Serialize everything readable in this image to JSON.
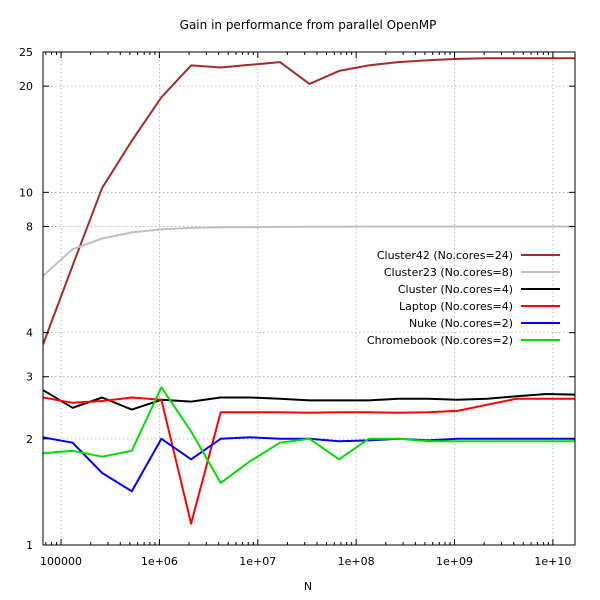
{
  "chart_data": {
    "type": "line",
    "title": "Gain in performance from parallel OpenMP",
    "xlabel": "N",
    "ylabel": "",
    "xscale": "log",
    "yscale": "log",
    "xlim": [
      65536,
      16777216000
    ],
    "ylim": [
      1,
      25
    ],
    "grid": true,
    "legend_position": "right",
    "x_ticks": [
      {
        "value": 100000,
        "label": "100000"
      },
      {
        "value": 1000000,
        "label": "1e+06"
      },
      {
        "value": 10000000,
        "label": "1e+07"
      },
      {
        "value": 100000000,
        "label": "1e+08"
      },
      {
        "value": 1000000000,
        "label": "1e+09"
      },
      {
        "value": 10000000000,
        "label": "1e+10"
      }
    ],
    "y_ticks": [
      {
        "value": 1,
        "label": "1"
      },
      {
        "value": 2,
        "label": "2"
      },
      {
        "value": 3,
        "label": "3"
      },
      {
        "value": 4,
        "label": "4"
      },
      {
        "value": 8,
        "label": "8"
      },
      {
        "value": 10,
        "label": "10"
      },
      {
        "value": 20,
        "label": "20"
      },
      {
        "value": 25,
        "label": "25"
      }
    ],
    "x": [
      65536,
      131072,
      262144,
      524288,
      1048576,
      2097152,
      4194304,
      8388608,
      16777216,
      33554432,
      67108864,
      134217728,
      268435456,
      536870912,
      1073741824,
      2147483648,
      4294967296,
      8589934592,
      17179869184
    ],
    "series": [
      {
        "name": "Cluster42 (No.cores=24)",
        "color": "#a52a2a",
        "values": [
          3.7,
          6.2,
          10.3,
          14.0,
          18.6,
          22.9,
          22.6,
          23.0,
          23.4,
          20.3,
          22.1,
          22.9,
          23.4,
          23.7,
          23.9,
          24.0,
          24.0,
          24.0,
          24.0
        ]
      },
      {
        "name": "Cluster23 (No.cores=8)",
        "color": "#c0c0c0",
        "values": [
          5.8,
          6.9,
          7.4,
          7.7,
          7.85,
          7.93,
          7.96,
          7.97,
          7.98,
          7.99,
          7.99,
          8.0,
          8.0,
          8.0,
          8.0,
          8.0,
          8.0,
          8.0,
          8.0
        ]
      },
      {
        "name": "Cluster (No.cores=4)",
        "color": "#000000",
        "values": [
          2.75,
          2.45,
          2.62,
          2.42,
          2.58,
          2.55,
          2.62,
          2.62,
          2.6,
          2.57,
          2.57,
          2.57,
          2.6,
          2.6,
          2.58,
          2.6,
          2.64,
          2.68,
          2.67
        ]
      },
      {
        "name": "Laptop (No.cores=4)",
        "color": "#ff0000",
        "values": [
          2.62,
          2.53,
          2.56,
          2.62,
          2.58,
          1.15,
          2.38,
          2.38,
          2.38,
          2.37,
          2.38,
          2.38,
          2.37,
          2.38,
          2.4,
          2.5,
          2.6,
          2.6,
          2.6
        ]
      },
      {
        "name": "Nuke (No.cores=2)",
        "color": "#0000ff",
        "values": [
          2.02,
          1.95,
          1.6,
          1.42,
          2.0,
          1.75,
          2.0,
          2.02,
          2.0,
          2.0,
          1.97,
          1.98,
          2.0,
          1.98,
          2.0,
          2.0,
          2.0,
          2.0,
          2.0
        ]
      },
      {
        "name": "Chromebook (No.cores=2)",
        "color": "#00e000",
        "values": [
          1.82,
          1.85,
          1.78,
          1.85,
          2.8,
          2.1,
          1.5,
          1.73,
          1.95,
          2.0,
          1.75,
          2.0,
          2.0,
          1.97,
          1.97,
          1.97,
          1.97,
          1.97,
          1.97
        ]
      }
    ]
  }
}
